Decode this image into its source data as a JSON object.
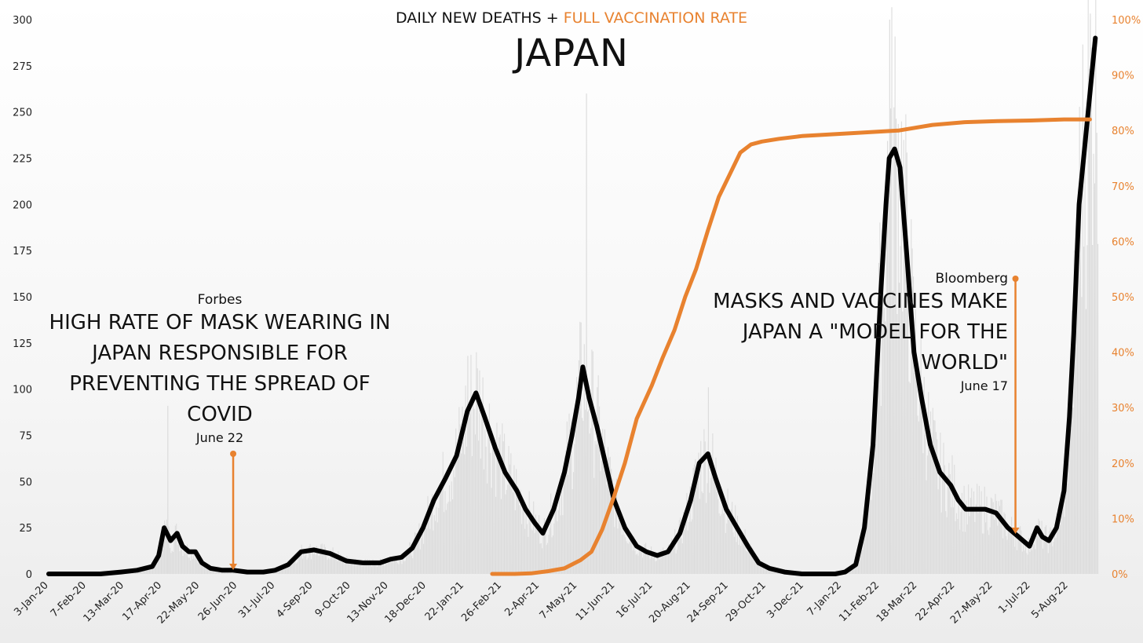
{
  "title": {
    "prefix": "DAILY NEW DEATHS + ",
    "highlight": "FULL VACCINATION RATE",
    "main": "JAPAN"
  },
  "colors": {
    "deaths_line": "#000000",
    "vaccination_line": "#e8822f",
    "daily_bars": "#dcdcdc",
    "right_axis": "#e8822f"
  },
  "annotations": [
    {
      "source": "Forbes",
      "headline": "HIGH RATE OF MASK WEARING IN JAPAN RESPONSIBLE FOR PREVENTING THE SPREAD OF COVID",
      "date": "June 22",
      "x": "2020-06-22"
    },
    {
      "source": "Bloomberg",
      "headline": "MASKS AND VACCINES MAKE JAPAN A \"MODEL FOR THE WORLD\"",
      "date": "June 17",
      "x": "2022-06-17"
    }
  ],
  "chart_data": {
    "type": "line",
    "title": "DAILY NEW DEATHS + FULL VACCINATION RATE — JAPAN",
    "x_start": "2020-01-03",
    "x_end": "2022-09-01",
    "ylim_left": [
      0,
      300
    ],
    "ylim_right": [
      0,
      100
    ],
    "left_ticks": [
      "0",
      "25",
      "50",
      "75",
      "100",
      "125",
      "150",
      "175",
      "200",
      "225",
      "250",
      "275",
      "300"
    ],
    "right_ticks": [
      "0%",
      "10%",
      "20%",
      "30%",
      "40%",
      "50%",
      "60%",
      "70%",
      "80%",
      "90%",
      "100%"
    ],
    "x_tick_labels": [
      "3-Jan-20",
      "7-Feb-20",
      "13-Mar-20",
      "17-Apr-20",
      "22-May-20",
      "26-Jun-20",
      "31-Jul-20",
      "4-Sep-20",
      "9-Oct-20",
      "13-Nov-20",
      "18-Dec-20",
      "22-Jan-21",
      "26-Feb-21",
      "2-Apr-21",
      "7-May-21",
      "11-Jun-21",
      "16-Jul-21",
      "20-Aug-21",
      "24-Sep-21",
      "29-Oct-21",
      "3-Dec-21",
      "7-Jan-22",
      "11-Feb-22",
      "18-Mar-22",
      "22-Apr-22",
      "27-May-22",
      "1-Jul-22",
      "5-Aug-22"
    ],
    "series": [
      {
        "type": "line",
        "axis": "left",
        "x": [
          "2020-01-03",
          "2020-02-20",
          "2020-03-10",
          "2020-03-25",
          "2020-04-08",
          "2020-04-14",
          "2020-04-19",
          "2020-04-25",
          "2020-05-01",
          "2020-05-06",
          "2020-05-12",
          "2020-05-18",
          "2020-05-24",
          "2020-06-01",
          "2020-06-12",
          "2020-06-22",
          "2020-07-05",
          "2020-07-20",
          "2020-07-31",
          "2020-08-12",
          "2020-08-24",
          "2020-09-05",
          "2020-09-20",
          "2020-10-05",
          "2020-10-20",
          "2020-11-05",
          "2020-11-15",
          "2020-11-25",
          "2020-12-05",
          "2020-12-15",
          "2020-12-25",
          "2021-01-05",
          "2021-01-15",
          "2021-01-25",
          "2021-02-02",
          "2021-02-10",
          "2021-02-20",
          "2021-03-01",
          "2021-03-12",
          "2021-03-20",
          "2021-03-28",
          "2021-04-05",
          "2021-04-15",
          "2021-04-25",
          "2021-05-02",
          "2021-05-08",
          "2021-05-12",
          "2021-05-18",
          "2021-05-25",
          "2021-06-02",
          "2021-06-10",
          "2021-06-20",
          "2021-07-01",
          "2021-07-10",
          "2021-07-20",
          "2021-07-30",
          "2021-08-10",
          "2021-08-20",
          "2021-08-28",
          "2021-09-05",
          "2021-09-12",
          "2021-09-22",
          "2021-10-02",
          "2021-10-12",
          "2021-10-22",
          "2021-11-01",
          "2021-11-15",
          "2021-12-01",
          "2021-12-15",
          "2022-01-01",
          "2022-01-10",
          "2022-01-20",
          "2022-01-28",
          "2022-02-05",
          "2022-02-12",
          "2022-02-17",
          "2022-02-20",
          "2022-02-25",
          "2022-03-02",
          "2022-03-08",
          "2022-03-15",
          "2022-03-22",
          "2022-03-30",
          "2022-04-08",
          "2022-04-18",
          "2022-04-25",
          "2022-05-02",
          "2022-05-10",
          "2022-05-20",
          "2022-05-30",
          "2022-06-10",
          "2022-06-20",
          "2022-06-30",
          "2022-07-07",
          "2022-07-12",
          "2022-07-18",
          "2022-07-25",
          "2022-08-01",
          "2022-08-06",
          "2022-08-10",
          "2022-08-15",
          "2022-08-20",
          "2022-08-25",
          "2022-08-30"
        ],
        "y": [
          0,
          0,
          1,
          2,
          4,
          10,
          25,
          18,
          22,
          15,
          12,
          12,
          6,
          3,
          2,
          2,
          1,
          1,
          2,
          5,
          12,
          13,
          11,
          7,
          6,
          6,
          8,
          9,
          14,
          25,
          40,
          52,
          64,
          88,
          98,
          85,
          68,
          55,
          45,
          35,
          28,
          22,
          35,
          55,
          75,
          95,
          112,
          95,
          80,
          60,
          40,
          25,
          15,
          12,
          10,
          12,
          22,
          40,
          60,
          65,
          52,
          35,
          25,
          15,
          6,
          3,
          1,
          0,
          0,
          0,
          1,
          5,
          25,
          70,
          150,
          200,
          225,
          230,
          220,
          175,
          120,
          95,
          70,
          55,
          48,
          40,
          35,
          35,
          35,
          33,
          25,
          20,
          15,
          25,
          20,
          18,
          25,
          45,
          85,
          130,
          200,
          230,
          260,
          290
        ]
      },
      {
        "type": "line",
        "axis": "right",
        "unit": "%",
        "x": [
          "2021-02-17",
          "2021-03-10",
          "2021-03-25",
          "2021-04-10",
          "2021-04-25",
          "2021-05-10",
          "2021-05-20",
          "2021-05-30",
          "2021-06-10",
          "2021-06-20",
          "2021-07-01",
          "2021-07-15",
          "2021-07-25",
          "2021-08-05",
          "2021-08-15",
          "2021-08-25",
          "2021-09-05",
          "2021-09-15",
          "2021-09-25",
          "2021-10-05",
          "2021-10-15",
          "2021-10-25",
          "2021-11-10",
          "2021-12-01",
          "2022-01-15",
          "2022-03-01",
          "2022-04-01",
          "2022-05-01",
          "2022-06-01",
          "2022-07-01",
          "2022-08-01",
          "2022-08-25"
        ],
        "y": [
          0,
          0,
          0.1,
          0.5,
          1,
          2.5,
          4,
          8,
          14,
          20,
          28,
          34,
          39,
          44,
          50,
          55,
          62,
          68,
          72,
          76,
          77.5,
          78,
          78.5,
          79,
          79.5,
          80,
          81,
          81.5,
          81.7,
          81.8,
          82,
          82
        ]
      }
    ],
    "bars": {
      "description": "daily new deaths (grey bars behind the 7-day line)",
      "peak_values": [
        {
          "x": "2020-04-22",
          "y": 91
        },
        {
          "x": "2021-01-25",
          "y": 118
        },
        {
          "x": "2021-05-15",
          "y": 260
        },
        {
          "x": "2021-09-05",
          "y": 101
        },
        {
          "x": "2022-02-20",
          "y": 300
        },
        {
          "x": "2022-08-25",
          "y": 300
        }
      ]
    }
  }
}
